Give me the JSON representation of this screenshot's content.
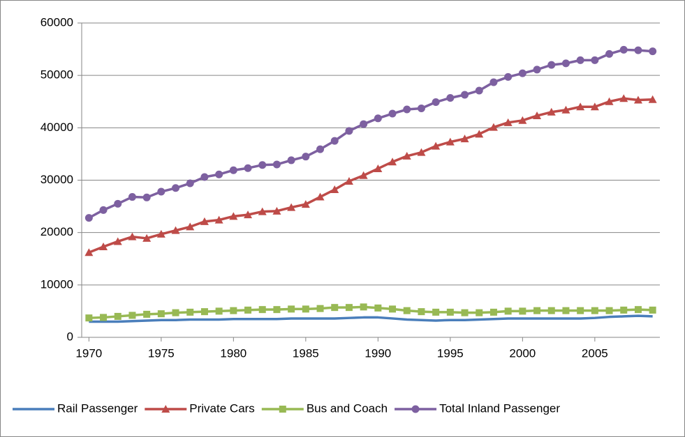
{
  "chart_data": {
    "type": "line",
    "x": [
      1970,
      1971,
      1972,
      1973,
      1974,
      1975,
      1976,
      1977,
      1978,
      1979,
      1980,
      1981,
      1982,
      1983,
      1984,
      1985,
      1986,
      1987,
      1988,
      1989,
      1990,
      1991,
      1992,
      1993,
      1994,
      1995,
      1996,
      1997,
      1998,
      1999,
      2000,
      2001,
      2002,
      2003,
      2004,
      2005,
      2006,
      2007,
      2008,
      2009
    ],
    "xlim": [
      1969.5,
      2009.5
    ],
    "xticks": [
      1970,
      1975,
      1980,
      1985,
      1990,
      1995,
      2000,
      2005
    ],
    "ylim": [
      0,
      60000
    ],
    "yticks": [
      0,
      10000,
      20000,
      30000,
      40000,
      50000,
      60000
    ],
    "grid": true,
    "legend": "bottom",
    "series": [
      {
        "name": "Rail Passenger",
        "color": "#4a7ebb",
        "marker": "none",
        "values": [
          3000,
          3000,
          3000,
          3100,
          3200,
          3300,
          3300,
          3400,
          3400,
          3400,
          3500,
          3500,
          3500,
          3500,
          3600,
          3600,
          3600,
          3600,
          3700,
          3800,
          3800,
          3600,
          3400,
          3300,
          3200,
          3300,
          3300,
          3400,
          3500,
          3600,
          3600,
          3600,
          3600,
          3600,
          3600,
          3700,
          3900,
          4000,
          4100,
          4000
        ]
      },
      {
        "name": "Private Cars",
        "color": "#be4b48",
        "marker": "triangle",
        "values": [
          16200,
          17300,
          18300,
          19200,
          18900,
          19700,
          20400,
          21100,
          22100,
          22400,
          23100,
          23400,
          24000,
          24100,
          24800,
          25400,
          26800,
          28200,
          29800,
          30900,
          32200,
          33500,
          34600,
          35300,
          36500,
          37300,
          37900,
          38800,
          40100,
          41000,
          41400,
          42300,
          43000,
          43400,
          44000,
          44000,
          45000,
          45600,
          45300,
          45400
        ]
      },
      {
        "name": "Bus and Coach",
        "color": "#98b954",
        "marker": "square",
        "values": [
          3700,
          3800,
          4000,
          4200,
          4400,
          4500,
          4700,
          4800,
          4900,
          5000,
          5100,
          5200,
          5300,
          5300,
          5400,
          5400,
          5500,
          5700,
          5700,
          5800,
          5600,
          5400,
          5100,
          4900,
          4800,
          4800,
          4700,
          4700,
          4800,
          5000,
          5000,
          5100,
          5100,
          5100,
          5100,
          5100,
          5100,
          5200,
          5300,
          5200
        ]
      },
      {
        "name": "Total Inland Passenger",
        "color": "#7d60a0",
        "marker": "circle",
        "values": [
          22800,
          24300,
          25500,
          26800,
          26700,
          27800,
          28500,
          29400,
          30600,
          31100,
          31900,
          32300,
          32900,
          33000,
          33800,
          34500,
          35900,
          37500,
          39400,
          40700,
          41800,
          42700,
          43500,
          43700,
          44900,
          45700,
          46300,
          47100,
          48700,
          49700,
          50400,
          51100,
          52000,
          52300,
          52900,
          52900,
          54100,
          54900,
          54800,
          54600
        ]
      }
    ]
  }
}
